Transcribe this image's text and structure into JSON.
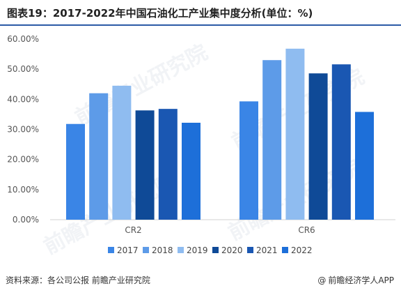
{
  "title": "图表19：2017-2022年中国石油化工产业集中度分析(单位：%)",
  "source": "资料来源：各公司公报 前瞻产业研究院",
  "brand": {
    "at": "@",
    "name": "前瞻经济学人APP"
  },
  "watermark": {
    "text": "前瞻产业研究院"
  },
  "chart_data": {
    "type": "bar",
    "categories": [
      "CR2",
      "CR6"
    ],
    "series": [
      {
        "name": "2017",
        "color": "#3a85e6",
        "values": [
          31.8,
          39.3
        ]
      },
      {
        "name": "2018",
        "color": "#5d9be8",
        "values": [
          42.0,
          53.0
        ]
      },
      {
        "name": "2019",
        "color": "#8fbcf0",
        "values": [
          44.5,
          56.8
        ]
      },
      {
        "name": "2020",
        "color": "#0f4a97",
        "values": [
          36.3,
          48.6
        ]
      },
      {
        "name": "2021",
        "color": "#1a57b2",
        "values": [
          36.8,
          51.6
        ]
      },
      {
        "name": "2022",
        "color": "#1d6fd9",
        "values": [
          32.2,
          35.8
        ]
      }
    ],
    "yticks": [
      "0.00%",
      "10.00%",
      "20.00%",
      "30.00%",
      "40.00%",
      "50.00%",
      "60.00%"
    ],
    "ylim": [
      0,
      60
    ],
    "grid": false,
    "legend": "bottom"
  }
}
